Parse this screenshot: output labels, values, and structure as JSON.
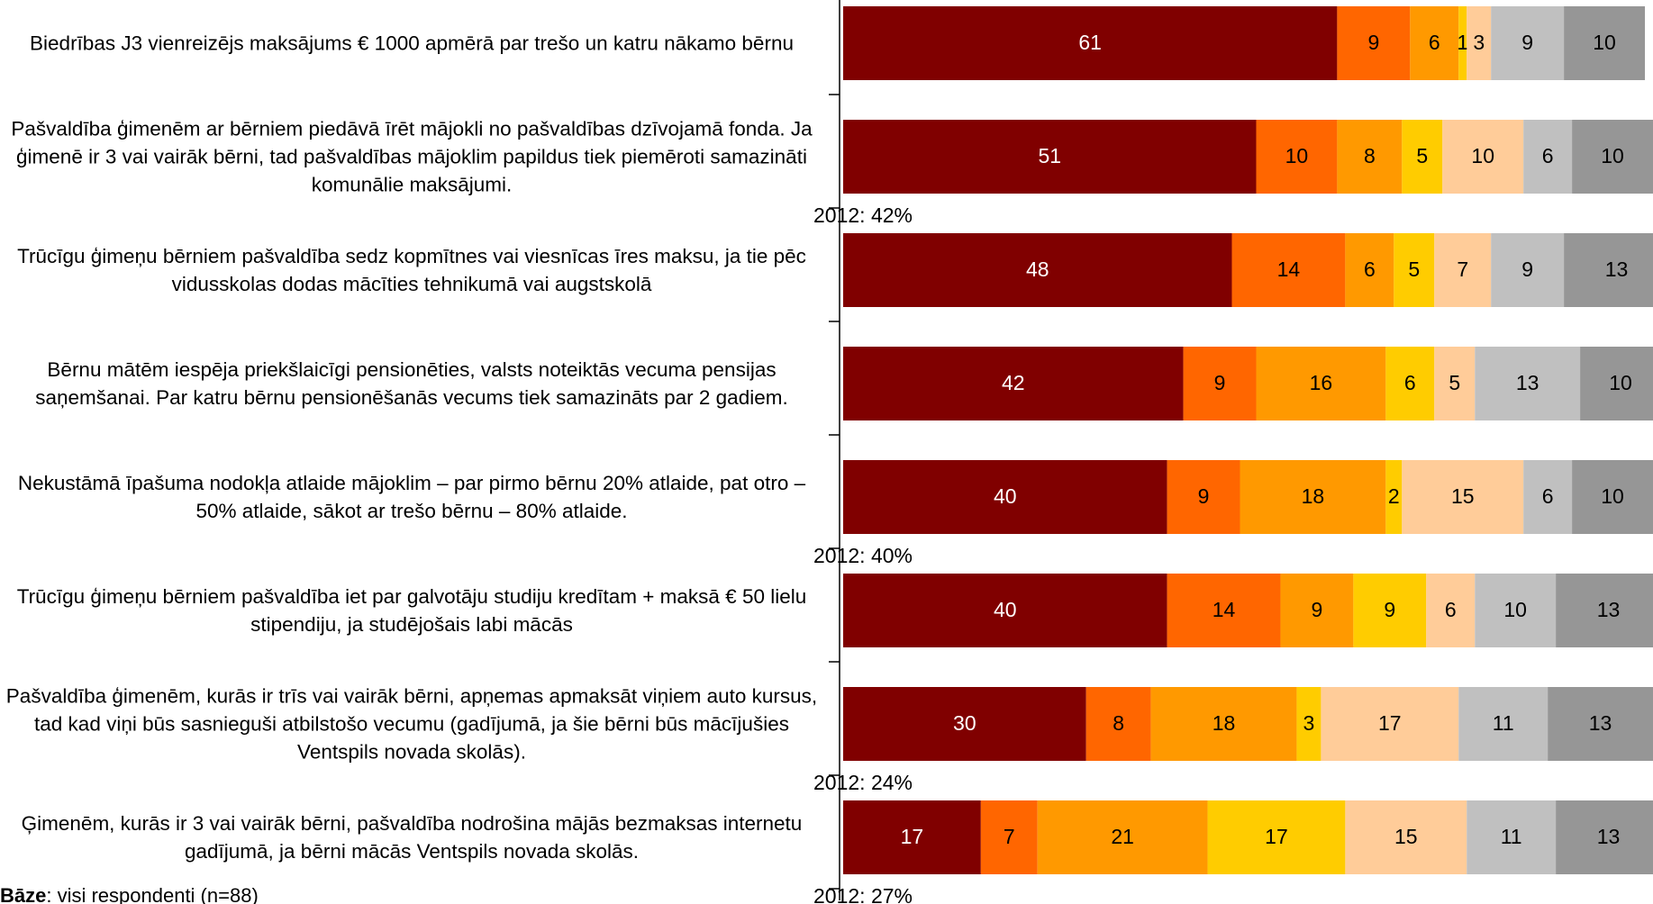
{
  "chart_data": {
    "type": "stacked_barh",
    "categories": [
      "Biedrības J3 vienreizējs maksājums € 1000 apmērā par trešo un katru nākamo bērnu",
      "Pašvaldība ģimenēm ar bērniem piedāvā īrēt mājokli no pašvaldības dzīvojamā fonda. Ja ģimenē ir 3 vai vairāk bērni, tad pašvaldības mājoklim papildus tiek piemēroti samazināti komunālie maksājumi.",
      "Trūcīgu ģimeņu bērniem pašvaldība sedz kopmītnes vai viesnīcas īres maksu, ja tie pēc vidusskolas dodas mācīties tehnikumā vai augstskolā",
      "Bērnu mātēm iespēja priekšlaicīgi pensionēties, valsts noteiktās vecuma pensijas saņemšanai. Par katru bērnu pensionēšanās vecums tiek samazināts par 2 gadiem.",
      "Nekustāmā īpašuma nodokļa atlaide mājoklim – par pirmo bērnu 20%  atlaide, pat otro – 50%  atlaide, sākot ar trešo bērnu – 80%  atlaide.",
      "Trūcīgu ģimeņu bērniem pašvaldība iet par galvotāju studiju kredītam + maksā € 50 lielu stipendiju, ja studējošais labi mācās",
      "Pašvaldība ģimenēm, kurās ir trīs vai vairāk bērni, apņemas apmaksāt viņiem auto kursus, tad kad viņi būs sasnieguši atbilstošo vecumu (gadījumā, ja šie bērni būs mācījušies Ventspils novada skolās).",
      "Ģimenēm, kurās ir 3 vai vairāk bērni, pašvaldība nodrošina mājās bezmaksas internetu gadījumā, ja bērni mācās Ventspils novada skolās."
    ],
    "series": [
      {
        "color": "#800000",
        "label_color": "#ffffff",
        "values": [
          61,
          51,
          48,
          42,
          40,
          40,
          30,
          17
        ]
      },
      {
        "color": "#ff6600",
        "label_color": "#000000",
        "values": [
          9,
          10,
          14,
          9,
          9,
          14,
          8,
          7
        ]
      },
      {
        "color": "#ff9900",
        "label_color": "#000000",
        "values": [
          6,
          8,
          6,
          16,
          18,
          9,
          18,
          21
        ]
      },
      {
        "color": "#ffcc00",
        "label_color": "#000000",
        "values": [
          1,
          5,
          5,
          6,
          2,
          9,
          3,
          17
        ]
      },
      {
        "color": "#ffcc99",
        "label_color": "#000000",
        "values": [
          3,
          10,
          7,
          5,
          15,
          6,
          17,
          15
        ]
      },
      {
        "color": "#c0c0c0",
        "label_color": "#000000",
        "values": [
          9,
          6,
          9,
          13,
          6,
          10,
          11,
          11
        ]
      },
      {
        "color": "#969696",
        "label_color": "#000000",
        "values": [
          10,
          10,
          13,
          10,
          10,
          13,
          13,
          13
        ]
      }
    ],
    "notes_2012": [
      null,
      "2012: 42%",
      null,
      null,
      "2012: 40%",
      null,
      "2012: 24%",
      "2012: 27%"
    ],
    "xlim": [
      0,
      100
    ],
    "footnote": {
      "label": "Bāze",
      "text": ": visi respondenti (n=88)"
    }
  }
}
